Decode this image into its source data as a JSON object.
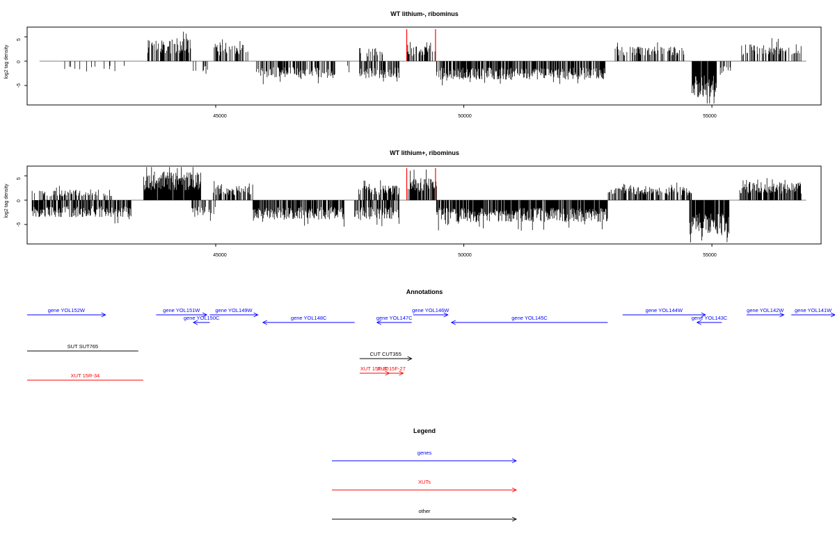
{
  "chart_data": [
    {
      "type": "bar",
      "title": "WT lithium-, ribominus",
      "ylabel": "log2 tag density",
      "xlim": [
        41200,
        57200
      ],
      "ylim": [
        -9,
        7
      ],
      "x_ticks": [
        45000,
        50000,
        55000
      ],
      "y_ticks": [
        -5,
        0,
        5
      ],
      "x_tick_labels": [
        "45000",
        "50000",
        "55000"
      ],
      "y_tick_labels": [
        "-5",
        "0",
        "5"
      ],
      "marker_positions": [
        48850,
        49430
      ],
      "marker_color": "#ff0000",
      "regions": [
        {
          "start": 41300,
          "end": 41600,
          "dir": -1,
          "amp": 2.6,
          "density": 0.08
        },
        {
          "start": 41800,
          "end": 43300,
          "dir": -1,
          "amp": 2.2,
          "density": 0.12
        },
        {
          "start": 43620,
          "end": 44500,
          "dir": 1,
          "amp": 4.5,
          "density": 0.7
        },
        {
          "start": 44500,
          "end": 44900,
          "dir": -1,
          "amp": 2.8,
          "density": 0.3
        },
        {
          "start": 44950,
          "end": 45650,
          "dir": 1,
          "amp": 3.4,
          "density": 0.55
        },
        {
          "start": 45800,
          "end": 47400,
          "dir": -1,
          "amp": 3.5,
          "density": 0.6
        },
        {
          "start": 47600,
          "end": 47800,
          "dir": -1,
          "amp": 2.0,
          "density": 0.2
        },
        {
          "start": 47850,
          "end": 48450,
          "dir": 1,
          "amp": 2.8,
          "density": 0.25
        },
        {
          "start": 47900,
          "end": 48700,
          "dir": -1,
          "amp": 3.6,
          "density": 0.55
        },
        {
          "start": 48850,
          "end": 49450,
          "dir": 1,
          "amp": 3.0,
          "density": 0.55
        },
        {
          "start": 49450,
          "end": 52850,
          "dir": -1,
          "amp": 3.8,
          "density": 0.75
        },
        {
          "start": 53050,
          "end": 54450,
          "dir": 1,
          "amp": 3.0,
          "density": 0.45
        },
        {
          "start": 54600,
          "end": 55100,
          "dir": -1,
          "amp": 7.5,
          "density": 0.95
        },
        {
          "start": 55100,
          "end": 55400,
          "dir": -1,
          "amp": 2.5,
          "density": 0.3
        },
        {
          "start": 55550,
          "end": 56800,
          "dir": 1,
          "amp": 3.5,
          "density": 0.5
        }
      ]
    },
    {
      "type": "bar",
      "title": "WT lithium+, ribominus",
      "ylabel": "log2 tag density",
      "xlim": [
        41200,
        57200
      ],
      "ylim": [
        -9,
        7
      ],
      "x_ticks": [
        45000,
        50000,
        55000
      ],
      "y_ticks": [
        -5,
        0,
        5
      ],
      "x_tick_labels": [
        "45000",
        "50000",
        "55000"
      ],
      "y_tick_labels": [
        "-5",
        "0",
        "5"
      ],
      "marker_positions": [
        48850,
        49430
      ],
      "marker_color": "#ff0000",
      "regions": [
        {
          "start": 41300,
          "end": 42900,
          "dir": 1,
          "amp": 2.2,
          "density": 0.35
        },
        {
          "start": 41300,
          "end": 43300,
          "dir": -1,
          "amp": 3.5,
          "density": 0.75
        },
        {
          "start": 43550,
          "end": 44700,
          "dir": 1,
          "amp": 5.8,
          "density": 0.95
        },
        {
          "start": 44500,
          "end": 45000,
          "dir": -1,
          "amp": 3.2,
          "density": 0.5
        },
        {
          "start": 44950,
          "end": 45750,
          "dir": 1,
          "amp": 3.0,
          "density": 0.55
        },
        {
          "start": 45750,
          "end": 47600,
          "dir": -1,
          "amp": 4.0,
          "density": 0.75
        },
        {
          "start": 47850,
          "end": 48700,
          "dir": 1,
          "amp": 3.0,
          "density": 0.55
        },
        {
          "start": 47800,
          "end": 48700,
          "dir": -1,
          "amp": 4.0,
          "density": 0.65
        },
        {
          "start": 48850,
          "end": 49450,
          "dir": 1,
          "amp": 4.5,
          "density": 0.75
        },
        {
          "start": 49450,
          "end": 52900,
          "dir": -1,
          "amp": 4.5,
          "density": 0.9
        },
        {
          "start": 52900,
          "end": 54600,
          "dir": 1,
          "amp": 2.8,
          "density": 0.55
        },
        {
          "start": 54550,
          "end": 55350,
          "dir": -1,
          "amp": 7.5,
          "density": 0.95
        },
        {
          "start": 55550,
          "end": 56800,
          "dir": 1,
          "amp": 3.8,
          "density": 0.8
        }
      ]
    }
  ],
  "annotations": {
    "title": "Annotations",
    "xlim": [
      41200,
      57200
    ],
    "items": [
      {
        "label": "gene YOL152W",
        "start": 41200,
        "end": 42780,
        "dir": 1,
        "row": 0,
        "color": "#0000ff"
      },
      {
        "label": "gene YOL151W",
        "start": 43800,
        "end": 44820,
        "dir": 1,
        "row": 0,
        "color": "#0000ff"
      },
      {
        "label": "gene YOL150C",
        "start": 44550,
        "end": 44880,
        "dir": -1,
        "row": 1,
        "color": "#0000ff"
      },
      {
        "label": "gene YOL149W",
        "start": 44880,
        "end": 45850,
        "dir": 1,
        "row": 0,
        "color": "#0000ff"
      },
      {
        "label": "gene YOL148C",
        "start": 45950,
        "end": 47800,
        "dir": -1,
        "row": 1,
        "color": "#0000ff"
      },
      {
        "label": "gene YOL147C",
        "start": 48250,
        "end": 48950,
        "dir": -1,
        "row": 1,
        "color": "#0000ff"
      },
      {
        "label": "gene YOL146W",
        "start": 48980,
        "end": 49680,
        "dir": 1,
        "row": 0,
        "color": "#0000ff"
      },
      {
        "label": "gene YOL145C",
        "start": 49750,
        "end": 52900,
        "dir": -1,
        "row": 1,
        "color": "#0000ff"
      },
      {
        "label": "gene YOL144W",
        "start": 53200,
        "end": 54870,
        "dir": 1,
        "row": 0,
        "color": "#0000ff"
      },
      {
        "label": "gene YOL143C",
        "start": 54700,
        "end": 55200,
        "dir": -1,
        "row": 1,
        "color": "#0000ff"
      },
      {
        "label": "gene YOL142W",
        "start": 55700,
        "end": 56450,
        "dir": 1,
        "row": 0,
        "color": "#0000ff"
      },
      {
        "label": "gene YOL141W",
        "start": 56600,
        "end": 58200,
        "dir": 1,
        "row": 0,
        "color": "#0000ff"
      },
      {
        "label": "SUT SUT765",
        "start": 41200,
        "end": 43440,
        "dir": 0,
        "row": 2,
        "color": "#000000"
      },
      {
        "label": "CUT CUT355",
        "start": 47900,
        "end": 48950,
        "dir": 1,
        "row": 3,
        "color": "#000000"
      },
      {
        "label": "XUT 15R-34",
        "start": 41200,
        "end": 43540,
        "dir": 0,
        "row": 5,
        "color": "#ff0000"
      },
      {
        "label": "XUT 15F-30",
        "start": 47900,
        "end": 48500,
        "dir": 1,
        "row": 4,
        "color": "#ff0000"
      },
      {
        "label": "XUT 15F-27",
        "start": 48300,
        "end": 48780,
        "dir": 1,
        "row": 4,
        "color": "#ff0000"
      }
    ]
  },
  "legend": {
    "title": "Legend",
    "items": [
      {
        "label": "genes",
        "color": "#0000ff"
      },
      {
        "label": "XUTs",
        "color": "#ff0000"
      },
      {
        "label": "other",
        "color": "#000000"
      }
    ]
  }
}
